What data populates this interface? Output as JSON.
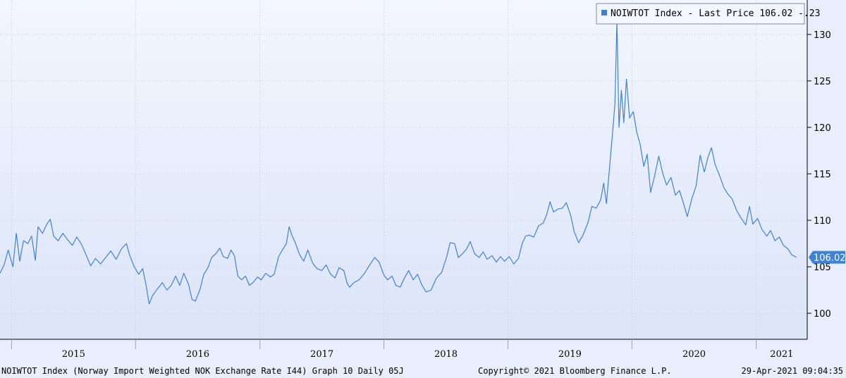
{
  "chart_data": {
    "type": "line",
    "series": [
      {
        "name": "NOIWTOT Index",
        "color": "#3e82d6",
        "points": [
          [
            "2014-11-28",
            104.3
          ],
          [
            "2014-12-10",
            105.2
          ],
          [
            "2014-12-22",
            106.8
          ],
          [
            "2015-01-05",
            105.0
          ],
          [
            "2015-01-15",
            108.6
          ],
          [
            "2015-01-25",
            105.6
          ],
          [
            "2015-02-05",
            107.8
          ],
          [
            "2015-02-18",
            107.5
          ],
          [
            "2015-03-01",
            108.3
          ],
          [
            "2015-03-12",
            105.7
          ],
          [
            "2015-03-20",
            109.3
          ],
          [
            "2015-04-02",
            108.6
          ],
          [
            "2015-04-15",
            109.6
          ],
          [
            "2015-04-25",
            110.1
          ],
          [
            "2015-05-05",
            108.3
          ],
          [
            "2015-05-18",
            107.8
          ],
          [
            "2015-06-01",
            108.6
          ],
          [
            "2015-06-15",
            107.9
          ],
          [
            "2015-06-29",
            107.3
          ],
          [
            "2015-07-12",
            108.2
          ],
          [
            "2015-07-26",
            107.4
          ],
          [
            "2015-08-08",
            106.3
          ],
          [
            "2015-08-22",
            105.1
          ],
          [
            "2015-09-05",
            105.9
          ],
          [
            "2015-09-20",
            105.3
          ],
          [
            "2015-10-05",
            106.0
          ],
          [
            "2015-10-20",
            106.7
          ],
          [
            "2015-11-05",
            105.8
          ],
          [
            "2015-11-20",
            106.9
          ],
          [
            "2015-12-05",
            107.5
          ],
          [
            "2015-12-15",
            106.2
          ],
          [
            "2015-12-28",
            105.0
          ],
          [
            "2016-01-10",
            104.2
          ],
          [
            "2016-01-22",
            104.8
          ],
          [
            "2016-02-01",
            103.0
          ],
          [
            "2016-02-10",
            101.0
          ],
          [
            "2016-02-20",
            101.9
          ],
          [
            "2016-03-05",
            102.6
          ],
          [
            "2016-03-20",
            103.3
          ],
          [
            "2016-04-02",
            102.5
          ],
          [
            "2016-04-15",
            103.0
          ],
          [
            "2016-04-28",
            104.0
          ],
          [
            "2016-05-10",
            103.0
          ],
          [
            "2016-05-22",
            104.3
          ],
          [
            "2016-06-05",
            103.1
          ],
          [
            "2016-06-15",
            101.5
          ],
          [
            "2016-06-25",
            101.3
          ],
          [
            "2016-07-08",
            102.5
          ],
          [
            "2016-07-20",
            104.2
          ],
          [
            "2016-08-01",
            104.9
          ],
          [
            "2016-08-12",
            106.0
          ],
          [
            "2016-08-24",
            106.4
          ],
          [
            "2016-09-05",
            107.0
          ],
          [
            "2016-09-15",
            106.1
          ],
          [
            "2016-09-28",
            105.9
          ],
          [
            "2016-10-08",
            106.8
          ],
          [
            "2016-10-18",
            106.2
          ],
          [
            "2016-10-28",
            104.0
          ],
          [
            "2016-11-08",
            103.6
          ],
          [
            "2016-11-20",
            104.0
          ],
          [
            "2016-12-01",
            103.0
          ],
          [
            "2016-12-12",
            103.3
          ],
          [
            "2016-12-25",
            103.9
          ],
          [
            "2017-01-05",
            103.6
          ],
          [
            "2017-01-18",
            104.3
          ],
          [
            "2017-02-01",
            103.9
          ],
          [
            "2017-02-12",
            104.2
          ],
          [
            "2017-02-25",
            106.1
          ],
          [
            "2017-03-08",
            106.8
          ],
          [
            "2017-03-20",
            107.5
          ],
          [
            "2017-03-28",
            109.3
          ],
          [
            "2017-04-05",
            108.4
          ],
          [
            "2017-04-15",
            107.6
          ],
          [
            "2017-04-28",
            106.3
          ],
          [
            "2017-05-10",
            105.6
          ],
          [
            "2017-05-22",
            106.8
          ],
          [
            "2017-06-05",
            105.4
          ],
          [
            "2017-06-18",
            104.8
          ],
          [
            "2017-07-02",
            104.6
          ],
          [
            "2017-07-15",
            105.2
          ],
          [
            "2017-07-28",
            104.2
          ],
          [
            "2017-08-10",
            103.8
          ],
          [
            "2017-08-22",
            104.9
          ],
          [
            "2017-09-05",
            104.6
          ],
          [
            "2017-09-15",
            103.2
          ],
          [
            "2017-09-22",
            102.8
          ],
          [
            "2017-10-05",
            103.3
          ],
          [
            "2017-10-20",
            103.6
          ],
          [
            "2017-11-05",
            104.3
          ],
          [
            "2017-11-20",
            105.2
          ],
          [
            "2017-12-05",
            106.0
          ],
          [
            "2017-12-18",
            105.5
          ],
          [
            "2018-01-01",
            104.1
          ],
          [
            "2018-01-12",
            103.6
          ],
          [
            "2018-01-25",
            104.0
          ],
          [
            "2018-02-05",
            103.0
          ],
          [
            "2018-02-18",
            102.8
          ],
          [
            "2018-03-01",
            103.7
          ],
          [
            "2018-03-15",
            104.6
          ],
          [
            "2018-03-28",
            103.6
          ],
          [
            "2018-04-10",
            104.2
          ],
          [
            "2018-04-22",
            103.1
          ],
          [
            "2018-05-05",
            102.3
          ],
          [
            "2018-05-20",
            102.5
          ],
          [
            "2018-06-05",
            103.8
          ],
          [
            "2018-06-20",
            104.4
          ],
          [
            "2018-07-05",
            106.1
          ],
          [
            "2018-07-15",
            107.6
          ],
          [
            "2018-07-28",
            107.5
          ],
          [
            "2018-08-08",
            106.0
          ],
          [
            "2018-08-20",
            106.4
          ],
          [
            "2018-09-01",
            106.9
          ],
          [
            "2018-09-12",
            107.7
          ],
          [
            "2018-09-25",
            106.4
          ],
          [
            "2018-10-08",
            106.0
          ],
          [
            "2018-10-20",
            106.6
          ],
          [
            "2018-11-01",
            105.8
          ],
          [
            "2018-11-15",
            106.2
          ],
          [
            "2018-11-28",
            105.5
          ],
          [
            "2018-12-10",
            106.1
          ],
          [
            "2018-12-22",
            105.6
          ],
          [
            "2019-01-05",
            106.1
          ],
          [
            "2019-01-18",
            105.3
          ],
          [
            "2019-02-01",
            105.9
          ],
          [
            "2019-02-12",
            107.5
          ],
          [
            "2019-02-22",
            108.3
          ],
          [
            "2019-03-05",
            108.4
          ],
          [
            "2019-03-18",
            108.2
          ],
          [
            "2019-04-01",
            109.4
          ],
          [
            "2019-04-15",
            109.7
          ],
          [
            "2019-04-25",
            110.6
          ],
          [
            "2019-05-05",
            112.0
          ],
          [
            "2019-05-15",
            110.9
          ],
          [
            "2019-05-28",
            111.2
          ],
          [
            "2019-06-10",
            111.3
          ],
          [
            "2019-06-22",
            111.9
          ],
          [
            "2019-07-05",
            110.5
          ],
          [
            "2019-07-15",
            108.8
          ],
          [
            "2019-07-28",
            107.6
          ],
          [
            "2019-08-10",
            108.4
          ],
          [
            "2019-08-25",
            109.8
          ],
          [
            "2019-09-05",
            111.5
          ],
          [
            "2019-09-18",
            111.3
          ],
          [
            "2019-10-01",
            112.2
          ],
          [
            "2019-10-10",
            114.0
          ],
          [
            "2019-10-18",
            111.8
          ],
          [
            "2019-10-28",
            116.0
          ],
          [
            "2019-11-05",
            119.4
          ],
          [
            "2019-11-12",
            122.5
          ],
          [
            "2019-11-18",
            131.4
          ],
          [
            "2019-11-24",
            120.0
          ],
          [
            "2019-12-01",
            124.0
          ],
          [
            "2019-12-08",
            120.5
          ],
          [
            "2019-12-16",
            125.2
          ],
          [
            "2019-12-25",
            121.0
          ],
          [
            "2020-01-05",
            121.7
          ],
          [
            "2020-01-15",
            119.5
          ],
          [
            "2020-01-25",
            118.2
          ],
          [
            "2020-02-05",
            115.8
          ],
          [
            "2020-02-15",
            117.1
          ],
          [
            "2020-02-25",
            113.0
          ],
          [
            "2020-03-08",
            114.8
          ],
          [
            "2020-03-20",
            116.9
          ],
          [
            "2020-04-01",
            115.0
          ],
          [
            "2020-04-12",
            113.8
          ],
          [
            "2020-04-25",
            114.6
          ],
          [
            "2020-05-08",
            112.7
          ],
          [
            "2020-05-20",
            113.2
          ],
          [
            "2020-06-01",
            111.8
          ],
          [
            "2020-06-12",
            110.4
          ],
          [
            "2020-06-25",
            112.3
          ],
          [
            "2020-07-08",
            113.7
          ],
          [
            "2020-07-20",
            117.0
          ],
          [
            "2020-08-01",
            115.2
          ],
          [
            "2020-08-12",
            116.8
          ],
          [
            "2020-08-22",
            117.8
          ],
          [
            "2020-09-02",
            116.0
          ],
          [
            "2020-09-15",
            114.8
          ],
          [
            "2020-09-28",
            113.5
          ],
          [
            "2020-10-10",
            112.8
          ],
          [
            "2020-10-22",
            112.3
          ],
          [
            "2020-11-05",
            111.0
          ],
          [
            "2020-11-18",
            110.2
          ],
          [
            "2020-12-01",
            109.5
          ],
          [
            "2020-12-12",
            111.5
          ],
          [
            "2020-12-22",
            109.6
          ],
          [
            "2021-01-05",
            110.2
          ],
          [
            "2021-01-18",
            109.0
          ],
          [
            "2021-02-01",
            108.3
          ],
          [
            "2021-02-12",
            108.9
          ],
          [
            "2021-02-25",
            107.8
          ],
          [
            "2021-03-10",
            108.2
          ],
          [
            "2021-03-22",
            107.3
          ],
          [
            "2021-04-05",
            106.9
          ],
          [
            "2021-04-15",
            106.3
          ],
          [
            "2021-04-29",
            106.02
          ]
        ]
      }
    ],
    "ylim": [
      97.2,
      133.7
    ],
    "y_ticks": [
      100,
      105,
      110,
      115,
      120,
      125,
      130
    ],
    "y_tick_labels": [
      "100",
      "105",
      "110",
      "115",
      "120",
      "125",
      "130"
    ],
    "x_range": [
      "2014-11-28",
      "2021-05-31"
    ],
    "x_year_labels": [
      "2015",
      "2016",
      "2017",
      "2018",
      "2019",
      "2020",
      "2021"
    ],
    "grid": true,
    "legend_position": "top-right",
    "y_axis_position": "right",
    "last_value": 106.02,
    "last_value_label": "106.02"
  },
  "legend": {
    "series_name": "NOIWTOT Index",
    "text": "NOIWTOT Index  - Last Price 106.02  -.23"
  },
  "footer": {
    "left": "NOIWTOT Index (Norway Import Weighted NOK Exchange Rate I44) Graph 10  Daily 05J",
    "center": "Copyright© 2021 Bloomberg Finance L.P.",
    "right": "29-Apr-2021 09:04:35"
  },
  "colors": {
    "background": "#e8eefc",
    "plot_gradient_top": "#f3f6fe",
    "plot_gradient_bottom": "#dbe4f8",
    "line": "#3e82d6",
    "grid": "#c8d0e0",
    "last_price_box": "#3e82d6"
  }
}
